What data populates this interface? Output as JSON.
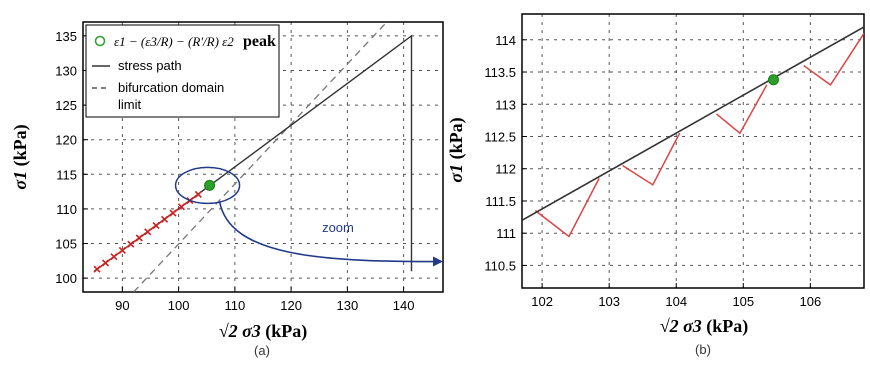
{
  "chart_data": [
    {
      "panel": "a",
      "type": "line",
      "caption": "(a)",
      "xlabel_math": "√2 σ3",
      "xlabel_unit": "(kPa)",
      "ylabel_math": "σ1",
      "ylabel_unit": "(kPa)",
      "xlim": [
        83,
        147
      ],
      "ylim": [
        98,
        137
      ],
      "xticks": [
        90,
        100,
        110,
        120,
        130,
        140
      ],
      "yticks": [
        100,
        105,
        110,
        115,
        120,
        125,
        130,
        135
      ],
      "grid": true,
      "legend": {
        "placement": "top-left",
        "entries": [
          {
            "label_math": "ε1 − (ε3/R) − (R'/R) ε2",
            "label_suffix": "peak",
            "marker": "circle",
            "color": "#2aa02a"
          },
          {
            "label": "stress path",
            "style": "solid",
            "color": "#333333"
          },
          {
            "label": "bifurcation domain limit",
            "style": "dashed",
            "color": "#555555"
          }
        ]
      },
      "series": [
        {
          "role": "stress_path",
          "x": [
            85,
            141.4,
            141.4
          ],
          "y": [
            101,
            135,
            101
          ]
        },
        {
          "role": "bifurcation_limit",
          "x": [
            92,
            137
          ],
          "y": [
            98,
            137
          ]
        },
        {
          "role": "red_markers",
          "color": "#cc2222",
          "x": [
            85.5,
            87,
            88.5,
            90,
            91.5,
            93,
            94.5,
            96,
            97.5,
            99,
            100.5,
            102,
            103.5
          ],
          "y": [
            101.3,
            102.2,
            103.1,
            104.0,
            104.9,
            105.8,
            106.7,
            107.6,
            108.5,
            109.4,
            110.3,
            111.2,
            112.1
          ]
        }
      ],
      "peak": {
        "x": 105.5,
        "y": 113.4,
        "color": "#2aa02a"
      },
      "annotations": [
        {
          "text": "zoom",
          "type": "arrow",
          "color": "#223a8a",
          "from_x": 105.5,
          "from_y": 113.4,
          "to_x": 147,
          "to_y": 102.4
        }
      ]
    },
    {
      "panel": "b",
      "type": "line",
      "caption": "(b)",
      "xlabel_math": "√2 σ3",
      "xlabel_unit": "(kPa)",
      "ylabel_math": "σ1",
      "ylabel_unit": "(kPa)",
      "xlim": [
        101.7,
        106.8
      ],
      "ylim": [
        110.15,
        114.4
      ],
      "xticks": [
        102,
        103,
        104,
        105,
        106
      ],
      "yticks": [
        110.5,
        111,
        111.5,
        112,
        112.5,
        113,
        113.5,
        114
      ],
      "ytick_labels": [
        "110.5",
        "111",
        "111.5",
        "112",
        "112.5",
        "113",
        "113.5",
        "114"
      ],
      "grid": true,
      "series": [
        {
          "role": "stress_path",
          "color": "#333333",
          "x": [
            101.7,
            106.8
          ],
          "y": [
            111.2,
            114.2
          ]
        },
        {
          "role": "red_cycle_1",
          "color": "#dd4444",
          "x": [
            101.9,
            102.4,
            102.85
          ],
          "y": [
            111.35,
            110.95,
            111.85
          ]
        },
        {
          "role": "red_cycle_2",
          "color": "#dd4444",
          "x": [
            103.2,
            103.65,
            104.05
          ],
          "y": [
            112.05,
            111.75,
            112.55
          ]
        },
        {
          "role": "red_cycle_3",
          "color": "#dd4444",
          "x": [
            104.6,
            104.95,
            105.35
          ],
          "y": [
            112.85,
            112.55,
            113.3
          ]
        },
        {
          "role": "red_cycle_4",
          "color": "#dd4444",
          "x": [
            105.9,
            106.3,
            106.8
          ],
          "y": [
            113.6,
            113.3,
            114.1
          ]
        }
      ],
      "peak": {
        "x": 105.45,
        "y": 113.38,
        "color": "#2aa02a"
      }
    }
  ]
}
